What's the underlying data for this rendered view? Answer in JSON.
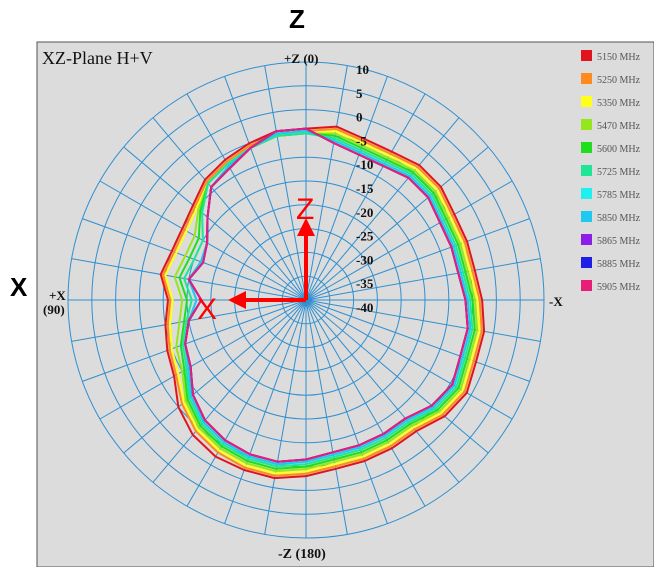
{
  "outer_labels": {
    "top": "Z",
    "left": "X"
  },
  "plot_title": "XZ-Plane   H+V",
  "direction_labels": {
    "top": "+Z (0)",
    "bottom": "-Z (180)",
    "left_line1": "+X",
    "left_line2": "(90)",
    "right": "-X"
  },
  "arrow_labels": {
    "vertical": "Z",
    "horizontal": "X"
  },
  "colors": {
    "panel_bg": "#dcdcdc",
    "grid": "#2f8fd0",
    "arrow": "#ff0000"
  },
  "chart_data": {
    "type": "polar",
    "title": "XZ-Plane   H+V",
    "radial_tick_labels": [
      "10",
      "5",
      "0",
      "-5",
      "-10",
      "-15",
      "-20",
      "-25",
      "-30",
      "-35",
      "-40"
    ],
    "radial_range": [
      -40,
      10
    ],
    "radial_unit": "dBi",
    "angular_grid_step_deg": 10,
    "legend_position": "right",
    "series": [
      {
        "name": "5150 MHz",
        "color": "#e0141e",
        "values": [
          -4,
          -4,
          -5,
          -6,
          -7,
          -9,
          -10,
          -10,
          -9,
          -11,
          -10,
          -9,
          -8,
          -5,
          -3,
          -2,
          -2,
          -2,
          -3,
          -4,
          -4,
          -4,
          -4,
          -2,
          -1,
          -2,
          -2,
          -3,
          -4,
          -4,
          -4,
          -3,
          -3,
          -4,
          -4,
          -3,
          -4
        ]
      },
      {
        "name": "5250 MHz",
        "color": "#ff8a1e",
        "values": [
          -4.5,
          -4.5,
          -5.5,
          -6.5,
          -7.5,
          -9.5,
          -10.5,
          -10.5,
          -9.5,
          -11.5,
          -10.5,
          -9.5,
          -8.5,
          -6,
          -4,
          -3,
          -2.5,
          -2.5,
          -3.5,
          -4.5,
          -4.5,
          -4.5,
          -4.5,
          -2.5,
          -1.5,
          -2.5,
          -2.5,
          -3.5,
          -4.5,
          -4.5,
          -4.5,
          -3.5,
          -3.5,
          -4.5,
          -4.5,
          -3.5,
          -4.5
        ]
      },
      {
        "name": "5350 MHz",
        "color": "#ffff1e",
        "values": [
          -5,
          -5,
          -6,
          -7,
          -8,
          -10,
          -11,
          -11,
          -10,
          -12,
          -11,
          -10,
          -9,
          -6.5,
          -4.5,
          -3.5,
          -3,
          -3,
          -4,
          -5,
          -5,
          -5,
          -5,
          -3,
          -2,
          -3,
          -3,
          -4,
          -5,
          -5,
          -5,
          -4,
          -4,
          -5,
          -5,
          -4,
          -5
        ]
      },
      {
        "name": "5470 MHz",
        "color": "#96e61e",
        "values": [
          -5,
          -5,
          -6,
          -7,
          -8,
          -10.5,
          -13,
          -13,
          -12,
          -14,
          -13,
          -11,
          -10,
          -7,
          -5,
          -4,
          -3.5,
          -3.5,
          -4.5,
          -5.5,
          -5.5,
          -5.5,
          -5.5,
          -3.5,
          -2.5,
          -3.5,
          -3.5,
          -4.5,
          -5.5,
          -5.5,
          -5.5,
          -4.5,
          -4.5,
          -5.5,
          -5.5,
          -4.5,
          -5
        ]
      },
      {
        "name": "5600 MHz",
        "color": "#1ede1e",
        "values": [
          -5,
          -5,
          -6,
          -7,
          -8,
          -11,
          -14,
          -14,
          -13,
          -15,
          -14,
          -12,
          -10.5,
          -7.5,
          -5.5,
          -4.5,
          -4,
          -4,
          -5,
          -6,
          -6,
          -6,
          -6,
          -4,
          -3,
          -4,
          -4,
          -5,
          -6,
          -6,
          -6,
          -5,
          -5,
          -6,
          -6,
          -5,
          -5
        ]
      },
      {
        "name": "5725 MHz",
        "color": "#1ee696",
        "values": [
          -5,
          -5,
          -6,
          -7,
          -8,
          -11.5,
          -15,
          -15,
          -14,
          -16,
          -14.5,
          -12.5,
          -11,
          -8,
          -6,
          -5,
          -4.5,
          -4.5,
          -5.5,
          -6.5,
          -6.5,
          -6.5,
          -6.5,
          -4.5,
          -3.5,
          -4.5,
          -4.5,
          -5.5,
          -6.5,
          -6.5,
          -6.5,
          -5.5,
          -5.5,
          -6.5,
          -6.5,
          -5.5,
          -5
        ]
      },
      {
        "name": "5785 MHz",
        "color": "#1ef0f0",
        "values": [
          -4.5,
          -4.5,
          -6,
          -7.5,
          -9,
          -13,
          -16,
          -16.5,
          -15,
          -17,
          -15,
          -13,
          -11.5,
          -8.5,
          -6.5,
          -5.5,
          -5,
          -5,
          -6,
          -7,
          -7,
          -7,
          -7,
          -5,
          -4,
          -5,
          -5,
          -6,
          -7,
          -7,
          -7,
          -6,
          -6,
          -7,
          -7,
          -6,
          -4.5
        ]
      },
      {
        "name": "5850 MHz",
        "color": "#1ec8f0",
        "values": [
          -4.5,
          -4.5,
          -6,
          -7.5,
          -9,
          -13,
          -16,
          -16.5,
          -15,
          -17,
          -15,
          -13,
          -11.5,
          -8.5,
          -6.5,
          -5.5,
          -5,
          -5,
          -6,
          -7,
          -7,
          -7,
          -7,
          -5,
          -4,
          -5,
          -5,
          -6,
          -7,
          -7,
          -7,
          -6,
          -6,
          -7,
          -7,
          -6,
          -4.5
        ]
      },
      {
        "name": "5865 MHz",
        "color": "#8c1ee6",
        "values": [
          -4,
          -4,
          -6,
          -8,
          -9,
          -13,
          -16,
          -17,
          -15,
          -18,
          -15,
          -13,
          -12,
          -9,
          -7,
          -6,
          -5.5,
          -5.5,
          -6.5,
          -7.5,
          -7.5,
          -7.5,
          -7.5,
          -5.5,
          -4.5,
          -5.5,
          -5.5,
          -6.5,
          -7.5,
          -7.5,
          -7.5,
          -6.5,
          -6.5,
          -7.5,
          -7.5,
          -6.5,
          -4
        ]
      },
      {
        "name": "5885 MHz",
        "color": "#1e1ee6",
        "values": [
          -4,
          -4,
          -6,
          -8,
          -9,
          -13,
          -16,
          -17,
          -15,
          -18,
          -15,
          -13,
          -12,
          -9,
          -7,
          -6,
          -5.5,
          -5.5,
          -6.5,
          -7.5,
          -7.5,
          -7.5,
          -7.5,
          -5.5,
          -4.5,
          -5.5,
          -5.5,
          -6.5,
          -7.5,
          -7.5,
          -7.5,
          -6.5,
          -6.5,
          -7.5,
          -7.5,
          -6.5,
          -4
        ]
      },
      {
        "name": "5905 MHz",
        "color": "#e61e78",
        "values": [
          -4,
          -4,
          -6,
          -8,
          -9,
          -13,
          -16,
          -17,
          -15,
          -18,
          -15,
          -13,
          -12,
          -9,
          -7,
          -6,
          -5.5,
          -5.5,
          -6.5,
          -7.5,
          -7.5,
          -7.5,
          -7.5,
          -5.5,
          -4.5,
          -5.5,
          -5.5,
          -6.5,
          -7.5,
          -7.5,
          -7.5,
          -6.5,
          -6.5,
          -7.5,
          -7.5,
          -6.5,
          -4
        ]
      }
    ]
  }
}
